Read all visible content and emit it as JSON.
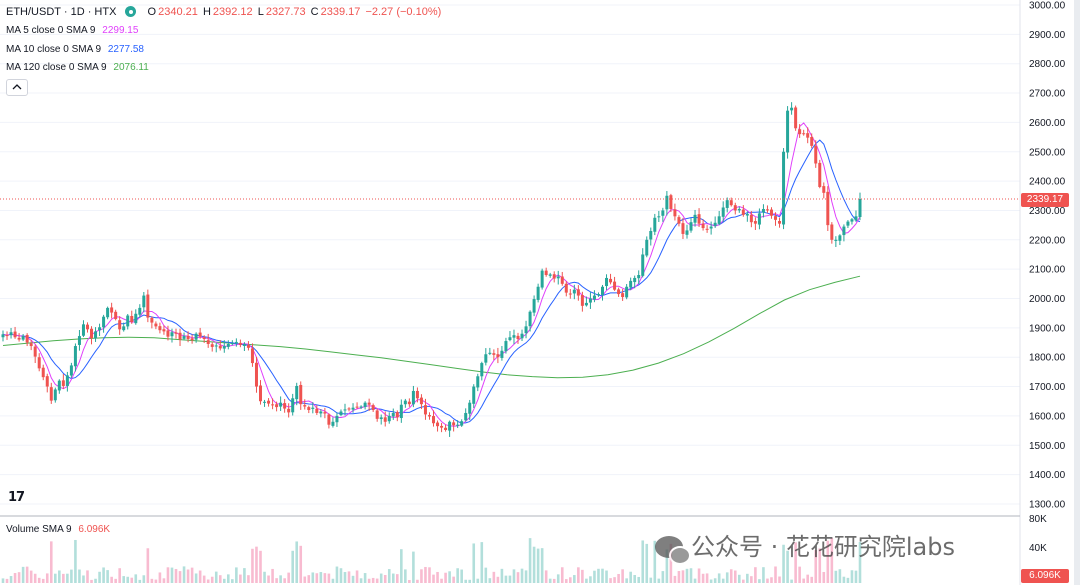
{
  "header": {
    "symbol": "ETH/USDT · 1D · HTX",
    "open_label": "O",
    "open": "2340.21",
    "high_label": "H",
    "high": "2392.12",
    "low_label": "L",
    "low": "2327.73",
    "close_label": "C",
    "close": "2339.17",
    "change": "−2.27 (−0.10%)"
  },
  "indicators": {
    "ma5": {
      "label": "MA 5 close 0 SMA 9",
      "value": "2299.15",
      "color": "#e040fb"
    },
    "ma10": {
      "label": "MA 10 close 0 SMA 9",
      "value": "2277.58",
      "color": "#2962ff"
    },
    "ma120": {
      "label": "MA 120 close 0 SMA 9",
      "value": "2076.11",
      "color": "#4caf50"
    }
  },
  "collapse_icon": "chevron-up-icon",
  "volume": {
    "label": "Volume SMA 9",
    "value": "6.096K",
    "axis_ticks": [
      "80K",
      "40K"
    ],
    "last_tag": "6.096K"
  },
  "price_tag": "2339.17",
  "price_axis_ticks": [
    "3000.00",
    "2900.00",
    "2800.00",
    "2700.00",
    "2600.00",
    "2500.00",
    "2400.00",
    "2300.00",
    "2200.00",
    "2100.00",
    "2000.00",
    "1900.00",
    "1800.00",
    "1700.00",
    "1600.00",
    "1500.00",
    "1400.00",
    "1300.00"
  ],
  "logo_text": "17",
  "watermark": "公众号 · 花花研究院labs",
  "colors": {
    "up": "#26a69a",
    "down": "#ef5350",
    "up_volume": "#b2dfdb",
    "down_volume": "#f8bbd0"
  },
  "chart_data": {
    "type": "candlestick",
    "title": "ETH/USDT · 1D · HTX",
    "ylim": [
      1300,
      3000
    ],
    "closes": [
      1878,
      1872,
      1885,
      1868,
      1860,
      1872,
      1850,
      1838,
      1802,
      1762,
      1732,
      1700,
      1652,
      1690,
      1720,
      1702,
      1738,
      1772,
      1838,
      1872,
      1912,
      1895,
      1865,
      1888,
      1902,
      1938,
      1968,
      1952,
      1930,
      1895,
      1905,
      1942,
      1920,
      1948,
      1968,
      2010,
      1935,
      1918,
      1905,
      1892,
      1888,
      1870,
      1885,
      1880,
      1860,
      1872,
      1862,
      1858,
      1880,
      1870,
      1862,
      1845,
      1835,
      1840,
      1830,
      1838,
      1845,
      1848,
      1852,
      1842,
      1845,
      1832,
      1780,
      1700,
      1650,
      1648,
      1642,
      1638,
      1630,
      1645,
      1625,
      1612,
      1660,
      1702,
      1640,
      1632,
      1620,
      1628,
      1610,
      1615,
      1608,
      1570,
      1580,
      1600,
      1615,
      1622,
      1625,
      1628,
      1630,
      1632,
      1645,
      1638,
      1620,
      1590,
      1595,
      1580,
      1600,
      1610,
      1595,
      1638,
      1652,
      1640,
      1685,
      1660,
      1640,
      1605,
      1598,
      1575,
      1565,
      1560,
      1552,
      1580,
      1568,
      1570,
      1582,
      1610,
      1645,
      1700,
      1735,
      1780,
      1810,
      1815,
      1808,
      1800,
      1822,
      1855,
      1868,
      1875,
      1862,
      1880,
      1905,
      1955,
      1998,
      2040,
      2095,
      2080,
      2082,
      2068,
      2075,
      2050,
      2020,
      2015,
      2030,
      2010,
      1975,
      1985,
      2000,
      2010,
      2015,
      2040,
      2070,
      2055,
      2030,
      2015,
      2005,
      2040,
      2060,
      2070,
      2080,
      2150,
      2200,
      2230,
      2275,
      2280,
      2300,
      2350,
      2305,
      2280,
      2255,
      2220,
      2232,
      2260,
      2285,
      2255,
      2240,
      2235,
      2245,
      2258,
      2280,
      2310,
      2335,
      2318,
      2300,
      2305,
      2285,
      2288,
      2260,
      2255,
      2290,
      2305,
      2300,
      2282,
      2268,
      2255,
      2500,
      2640,
      2650,
      2580,
      2560,
      2560,
      2548,
      2520,
      2460,
      2380,
      2360,
      2250,
      2200,
      2200,
      2215,
      2245,
      2262,
      2270,
      2280,
      2339
    ],
    "ma120": [
      1840,
      1848,
      1856,
      1862,
      1866,
      1868,
      1866,
      1860,
      1854,
      1848,
      1842,
      1836,
      1828,
      1818,
      1808,
      1798,
      1786,
      1774,
      1762,
      1750,
      1740,
      1734,
      1730,
      1732,
      1740,
      1756,
      1780,
      1812,
      1852,
      1898,
      1948,
      1995,
      2030,
      2055,
      2076
    ]
  }
}
